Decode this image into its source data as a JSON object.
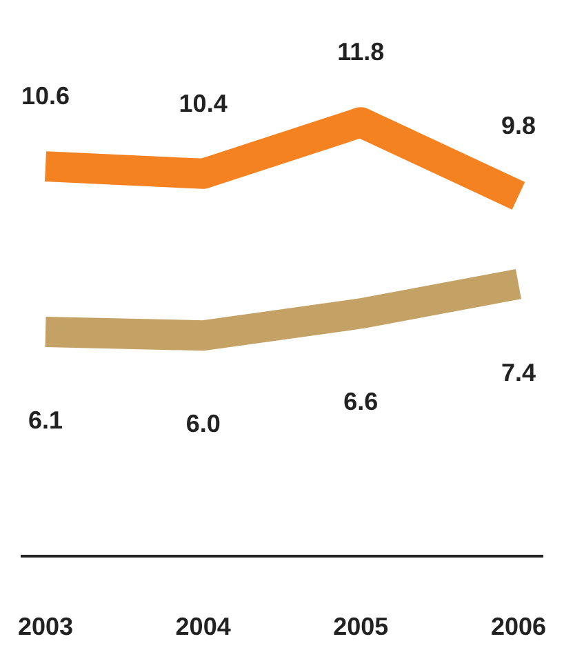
{
  "chart_data": {
    "type": "line",
    "categories": [
      "2003",
      "2004",
      "2005",
      "2006"
    ],
    "series": [
      {
        "color": "#f58220",
        "values": [
          10.6,
          10.4,
          11.8,
          9.8
        ]
      },
      {
        "color": "#c4a265",
        "values": [
          6.1,
          6.0,
          6.6,
          7.4
        ],
        "value_labels": [
          "6.1",
          "6.0",
          "6.6",
          "7.4"
        ]
      }
    ],
    "data_labels": true,
    "marker": "none",
    "line_style": "solid",
    "grid": false,
    "legend": false
  }
}
